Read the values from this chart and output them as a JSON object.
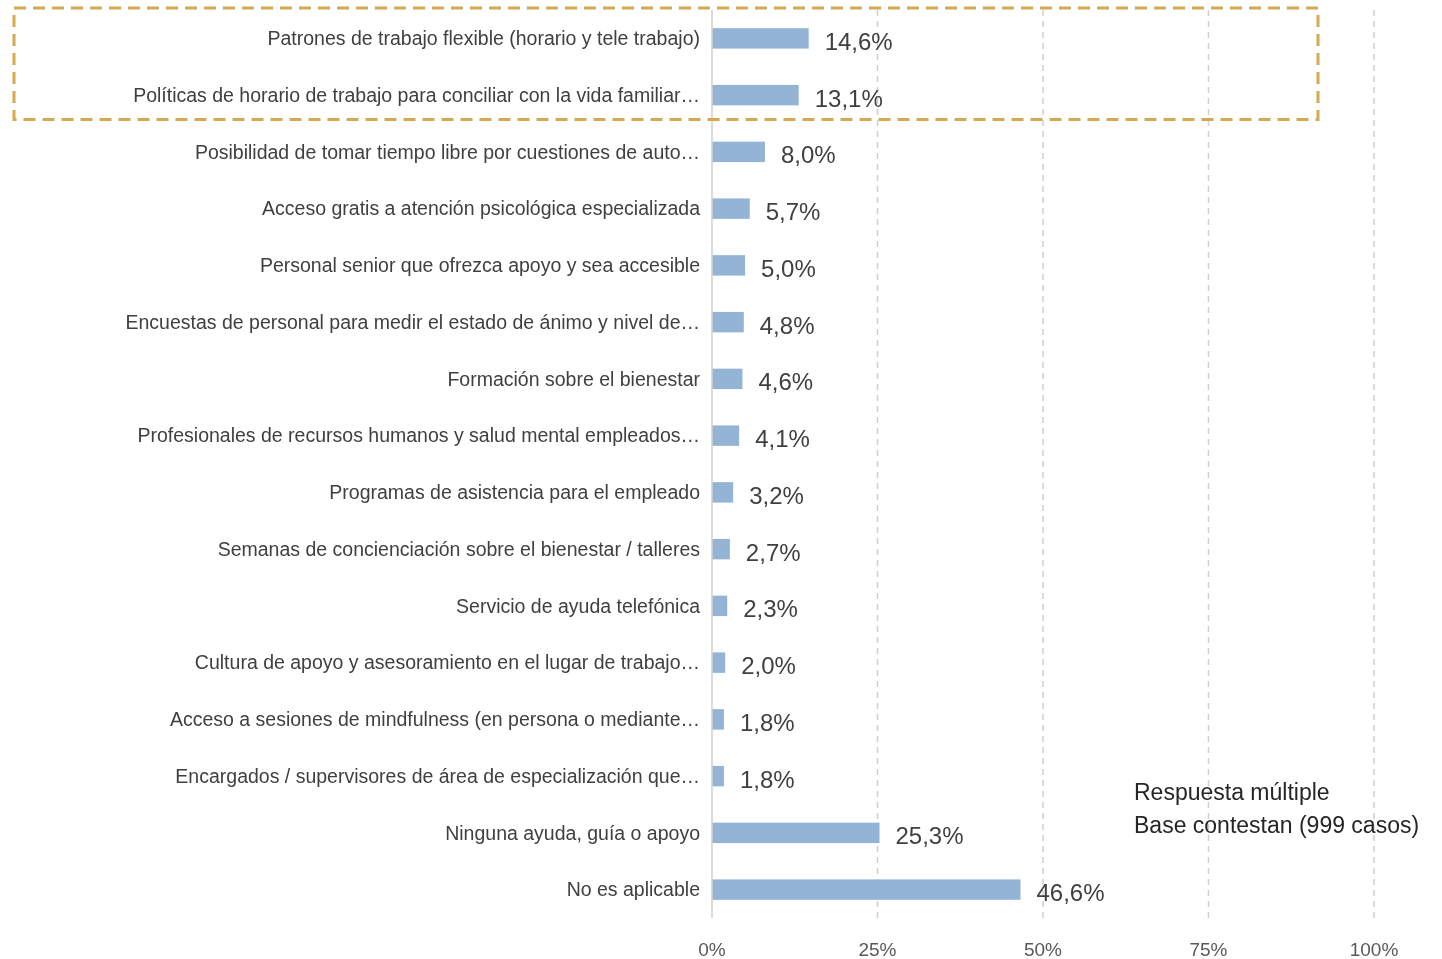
{
  "chart_data": {
    "type": "bar",
    "orientation": "horizontal",
    "categories": [
      "Patrones de trabajo flexible (horario y tele trabajo)",
      "Políticas de horario de trabajo para conciliar con la vida familiar…",
      "Posibilidad de tomar tiempo libre por cuestiones de auto…",
      "Acceso gratis a atención psicológica especializada",
      "Personal senior que ofrezca apoyo y sea accesible",
      "Encuestas de personal para medir el estado de ánimo y nivel de…",
      "Formación sobre el bienestar",
      "Profesionales de recursos humanos y salud mental empleados…",
      "Programas de asistencia para el empleado",
      "Semanas de concienciación sobre el bienestar / talleres",
      "Servicio de ayuda telefónica",
      "Cultura de apoyo y asesoramiento en el lugar de trabajo…",
      "Acceso a sesiones de mindfulness (en persona o mediante…",
      "Encargados / supervisores de área de especialización que…",
      "Ninguna ayuda, guía o apoyo",
      "No es aplicable"
    ],
    "values": [
      14.6,
      13.1,
      8.0,
      5.7,
      5.0,
      4.8,
      4.6,
      4.1,
      3.2,
      2.7,
      2.3,
      2.0,
      1.8,
      1.8,
      25.3,
      46.6
    ],
    "value_labels": [
      "14,6%",
      "13,1%",
      "8,0%",
      "5,7%",
      "5,0%",
      "4,8%",
      "4,6%",
      "4,1%",
      "3,2%",
      "2,7%",
      "2,3%",
      "2,0%",
      "1,8%",
      "1,8%",
      "25,3%",
      "46,6%"
    ],
    "color": "#93b4d4",
    "xlim": [
      0,
      100
    ],
    "xticks": [
      {
        "value": 0,
        "label": "0%"
      },
      {
        "value": 25,
        "label": "25%"
      },
      {
        "value": 50,
        "label": "50%"
      },
      {
        "value": 75,
        "label": "75%"
      },
      {
        "value": 100,
        "label": "100%"
      }
    ],
    "grid": "x",
    "annotations": [
      "Respuesta múltiple",
      "Base contestan (999 casos)"
    ]
  }
}
